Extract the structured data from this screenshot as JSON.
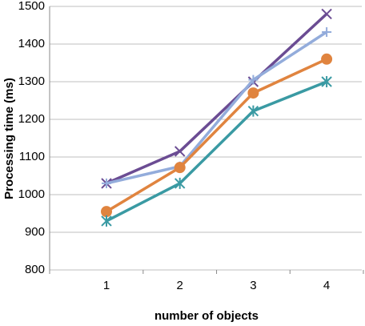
{
  "chart_data": {
    "type": "line",
    "y_label": "Processing time (ms)",
    "x_label": "number of objects",
    "categories": [
      "1",
      "2",
      "3",
      "4"
    ],
    "series": [
      {
        "color": "#6b4c93",
        "marker": "x",
        "values": [
          1030,
          1115,
          1300,
          1480
        ]
      },
      {
        "color": "#93acdb",
        "marker": "plus",
        "values": [
          1030,
          1075,
          1305,
          1432
        ]
      },
      {
        "color": "#e0843f",
        "marker": "circle",
        "values": [
          955,
          1072,
          1270,
          1360
        ]
      },
      {
        "color": "#3a9aa3",
        "marker": "star",
        "values": [
          930,
          1030,
          1222,
          1300
        ]
      }
    ],
    "ylim": [
      800,
      1500
    ],
    "yticks": [
      800,
      900,
      1000,
      1100,
      1200,
      1300,
      1400,
      1500
    ],
    "grid": true
  }
}
